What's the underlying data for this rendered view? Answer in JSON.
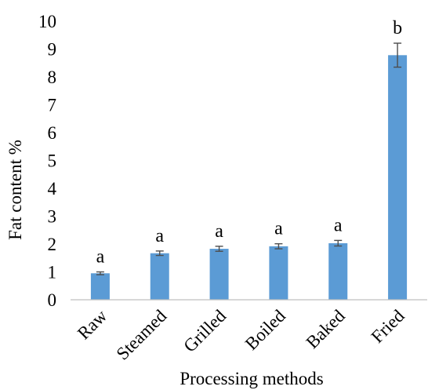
{
  "chart_data": {
    "type": "bar",
    "categories": [
      "Raw",
      "Steamed",
      "Grilled",
      "Boiled",
      "Baked",
      "Fried"
    ],
    "series": [
      {
        "values": [
          0.95,
          1.67,
          1.83,
          1.92,
          2.03,
          8.78
        ],
        "error": [
          0.05,
          0.08,
          0.09,
          0.09,
          0.1,
          0.43
        ],
        "significance": [
          "a",
          "a",
          "a",
          "a",
          "a",
          "b"
        ]
      }
    ],
    "xlabel": "Processing methods",
    "ylabel": "Fat content %",
    "ylim": [
      0,
      10
    ],
    "yticks": [
      "0",
      "1",
      "2",
      "3",
      "4",
      "5",
      "6",
      "7",
      "8",
      "9",
      "10"
    ],
    "grid": false,
    "legend": "none",
    "colors": {
      "bar": "#5b9bd5",
      "error_bar": "#4d4d4d",
      "axis": "#bfbfbf",
      "text": "#000000"
    }
  }
}
